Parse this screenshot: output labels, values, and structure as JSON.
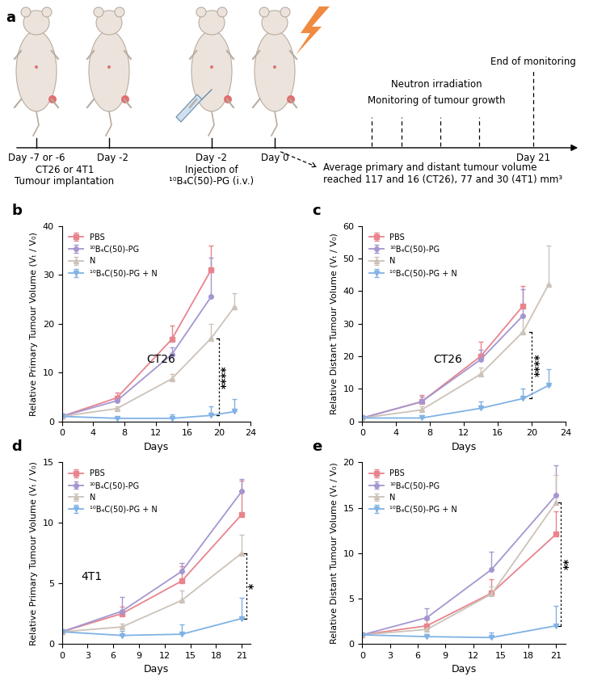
{
  "diagram": {
    "panel_label": "a",
    "texts": {
      "implant_day": "Day -7 or -6",
      "implant_day2": "Day -2",
      "implant_what": "CT26 or 4T1",
      "implant_action": "Tumour implantation",
      "inject_day": "Day -2",
      "inject_line1": "Injection of",
      "inject_line2": "¹⁰B₄C(50)-PG (i.v.)",
      "irr_day": "Day 0",
      "irradiation": "Neutron irradiation",
      "monitoring": "Monitoring of tumour growth",
      "end": "End of monitoring",
      "end_day": "Day 21",
      "volume_line1": "Average primary and distant tumour volume",
      "volume_line2": "reached 117 and 16 (CT26), 77 and 30 (4T1) mm³"
    }
  },
  "chart_data": [
    {
      "type": "line",
      "panel_label": "b",
      "inset_text": "CT26",
      "x_label": "Days",
      "y_label": "Relative Primary Tumour Volume (Vₜ / V₀)",
      "xlim": [
        0,
        24
      ],
      "xticks": [
        0,
        4,
        8,
        12,
        16,
        20,
        24
      ],
      "ylim": [
        0,
        40
      ],
      "yticks": [
        0,
        10,
        20,
        30,
        40
      ],
      "legend": "upper left",
      "series": [
        {
          "name": "PBS",
          "color": "#e8848c",
          "marker": "square",
          "x": [
            0,
            7,
            14,
            19
          ],
          "values": [
            1,
            4.8,
            16.8,
            31
          ],
          "errors": [
            0,
            1,
            2.8,
            5
          ]
        },
        {
          "name": "¹⁰B₄C(50)-PG",
          "color": "#a596d0",
          "marker": "circle",
          "x": [
            0,
            7,
            14,
            19
          ],
          "values": [
            1,
            4.2,
            13.7,
            25.5
          ],
          "errors": [
            0,
            0.8,
            1.5,
            8
          ]
        },
        {
          "name": "N",
          "color": "#cdc2b8",
          "marker": "triangle_up",
          "x": [
            0,
            7,
            14,
            19,
            22
          ],
          "values": [
            1,
            2.6,
            8.7,
            17,
            23.5
          ],
          "errors": [
            0,
            0.5,
            1,
            3,
            2.8
          ]
        },
        {
          "name": "¹⁰B₄C(50)-PG + N",
          "color": "#80b2e4",
          "marker": "triangle_down",
          "x": [
            0,
            7,
            14,
            19,
            22
          ],
          "values": [
            1,
            0.6,
            0.6,
            1.2,
            2.0
          ],
          "errors": [
            0,
            0.3,
            0.8,
            1.8,
            2.5
          ]
        }
      ],
      "annotations": [
        {
          "text": "****",
          "x": 20,
          "from": 17,
          "to": 1.2
        }
      ]
    },
    {
      "type": "line",
      "panel_label": "c",
      "inset_text": "CT26",
      "x_label": "Days",
      "y_label": "Relative Distant Tumour Volume (Vₜ / V₀)",
      "xlim": [
        0,
        24
      ],
      "xticks": [
        0,
        4,
        8,
        12,
        16,
        20,
        24
      ],
      "ylim": [
        0,
        60
      ],
      "yticks": [
        0,
        10,
        20,
        30,
        40,
        50,
        60
      ],
      "legend": "upper left",
      "series": [
        {
          "name": "PBS",
          "color": "#e8848c",
          "marker": "square",
          "x": [
            0,
            7,
            14,
            19
          ],
          "values": [
            1,
            6,
            20,
            35.5
          ],
          "errors": [
            0,
            2,
            4.5,
            6
          ]
        },
        {
          "name": "¹⁰B₄C(50)-PG",
          "color": "#a596d0",
          "marker": "circle",
          "x": [
            0,
            7,
            14,
            19
          ],
          "values": [
            1,
            6,
            19,
            32.5
          ],
          "errors": [
            0,
            1.5,
            3,
            8
          ]
        },
        {
          "name": "N",
          "color": "#cdc2b8",
          "marker": "triangle_up",
          "x": [
            0,
            7,
            14,
            19,
            22
          ],
          "values": [
            1,
            3.5,
            14.5,
            27.5,
            42
          ],
          "errors": [
            0,
            1,
            2,
            5,
            12
          ]
        },
        {
          "name": "¹⁰B₄C(50)-PG + N",
          "color": "#80b2e4",
          "marker": "triangle_down",
          "x": [
            0,
            7,
            14,
            19,
            22
          ],
          "values": [
            1,
            1,
            4,
            7,
            11
          ],
          "errors": [
            0,
            0.8,
            2,
            3,
            5
          ]
        }
      ],
      "annotations": [
        {
          "text": "****",
          "x": 20,
          "from": 27.5,
          "to": 7
        }
      ]
    },
    {
      "type": "line",
      "panel_label": "d",
      "inset_text": "4T1",
      "x_label": "Days",
      "y_label": "Relative Primary Tumour Volume (Vₜ / V₀)",
      "xlim": [
        0,
        22
      ],
      "xticks": [
        0,
        3,
        6,
        9,
        12,
        15,
        18,
        21
      ],
      "ylim": [
        0,
        15
      ],
      "yticks": [
        0,
        5,
        10,
        15
      ],
      "legend": "upper left",
      "series": [
        {
          "name": "PBS",
          "color": "#e8848c",
          "marker": "square",
          "x": [
            0,
            7,
            14,
            21
          ],
          "values": [
            1,
            2.5,
            5.2,
            10.7
          ],
          "errors": [
            0,
            0.6,
            1.2,
            2.8
          ]
        },
        {
          "name": "¹⁰B₄C(50)-PG",
          "color": "#a596d0",
          "marker": "circle",
          "x": [
            0,
            7,
            14,
            21
          ],
          "values": [
            1,
            2.7,
            6,
            12.6
          ],
          "errors": [
            0,
            1.2,
            0.7,
            1
          ]
        },
        {
          "name": "N",
          "color": "#cdc2b8",
          "marker": "triangle_up",
          "x": [
            0,
            7,
            14,
            21
          ],
          "values": [
            1,
            1.4,
            3.6,
            7.5
          ],
          "errors": [
            0,
            0.3,
            0.8,
            1.5
          ]
        },
        {
          "name": "¹⁰B₄C(50)-PG + N",
          "color": "#80b2e4",
          "marker": "triangle_down",
          "x": [
            0,
            7,
            14,
            21
          ],
          "values": [
            1,
            0.7,
            0.8,
            2.1
          ],
          "errors": [
            0,
            0.4,
            0.8,
            1.7
          ]
        }
      ],
      "annotations": [
        {
          "text": "*",
          "x": 21.5,
          "from": 7.5,
          "to": 2.1
        }
      ]
    },
    {
      "type": "line",
      "panel_label": "e",
      "x_label": "Days",
      "y_label": "Relative Distant Tumour Volume (Vₜ / V₀)",
      "xlim": [
        0,
        22
      ],
      "xticks": [
        0,
        3,
        6,
        9,
        12,
        15,
        18,
        21
      ],
      "ylim": [
        0,
        20
      ],
      "yticks": [
        0,
        5,
        10,
        15,
        20
      ],
      "legend": "upper left",
      "series": [
        {
          "name": "PBS",
          "color": "#e8848c",
          "marker": "square",
          "x": [
            0,
            7,
            14,
            21
          ],
          "values": [
            1,
            2,
            5.6,
            12.1
          ],
          "errors": [
            0,
            0.7,
            1.5,
            2.5
          ]
        },
        {
          "name": "¹⁰B₄C(50)-PG",
          "color": "#a596d0",
          "marker": "circle",
          "x": [
            0,
            7,
            14,
            21
          ],
          "values": [
            1,
            2.9,
            8.2,
            16.4
          ],
          "errors": [
            0,
            1,
            2,
            3.3
          ]
        },
        {
          "name": "N",
          "color": "#cdc2b8",
          "marker": "triangle_up",
          "x": [
            0,
            7,
            14,
            21
          ],
          "values": [
            1,
            1.6,
            5.5,
            15.6
          ],
          "errors": [
            0,
            0.4,
            0.8,
            3
          ]
        },
        {
          "name": "¹⁰B₄C(50)-PG + N",
          "color": "#80b2e4",
          "marker": "triangle_down",
          "x": [
            0,
            7,
            14,
            21
          ],
          "values": [
            1,
            0.8,
            0.7,
            2
          ],
          "errors": [
            0,
            0.3,
            0.6,
            2.2
          ]
        }
      ],
      "annotations": [
        {
          "text": "**",
          "x": 21.5,
          "from": 15.6,
          "to": 2
        }
      ]
    }
  ]
}
